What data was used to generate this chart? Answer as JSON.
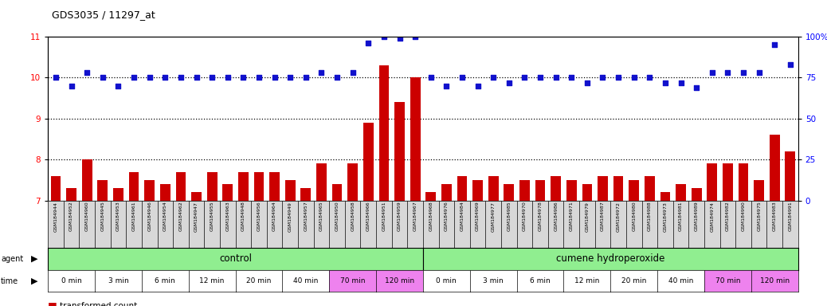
{
  "title": "GDS3035 / 11297_at",
  "samples": [
    "GSM184944",
    "GSM184952",
    "GSM184960",
    "GSM184945",
    "GSM184953",
    "GSM184961",
    "GSM184946",
    "GSM184954",
    "GSM184962",
    "GSM184947",
    "GSM184955",
    "GSM184963",
    "GSM184948",
    "GSM184956",
    "GSM184964",
    "GSM184949",
    "GSM184957",
    "GSM184965",
    "GSM184950",
    "GSM184958",
    "GSM184966",
    "GSM184951",
    "GSM184959",
    "GSM184967",
    "GSM184968",
    "GSM184976",
    "GSM184984",
    "GSM184969",
    "GSM184977",
    "GSM184985",
    "GSM184970",
    "GSM184978",
    "GSM184986",
    "GSM184971",
    "GSM184979",
    "GSM184987",
    "GSM184972",
    "GSM184980",
    "GSM184988",
    "GSM184973",
    "GSM184981",
    "GSM184989",
    "GSM184974",
    "GSM184982",
    "GSM184990",
    "GSM184975",
    "GSM184983",
    "GSM184991"
  ],
  "bar_values": [
    7.6,
    7.3,
    8.0,
    7.5,
    7.3,
    7.7,
    7.5,
    7.4,
    7.7,
    7.2,
    7.7,
    7.4,
    7.7,
    7.7,
    7.7,
    7.5,
    7.3,
    7.9,
    7.4,
    7.9,
    8.9,
    10.3,
    9.4,
    10.0,
    7.2,
    7.4,
    7.6,
    7.5,
    7.6,
    7.4,
    7.5,
    7.5,
    7.6,
    7.5,
    7.4,
    7.6,
    7.6,
    7.5,
    7.6,
    7.2,
    7.4,
    7.3,
    7.9,
    7.9,
    7.9,
    7.5,
    8.6,
    8.2
  ],
  "percentile_values": [
    75,
    70,
    78,
    75,
    70,
    75,
    75,
    75,
    75,
    75,
    75,
    75,
    75,
    75,
    75,
    75,
    75,
    78,
    75,
    78,
    96,
    100,
    99,
    100,
    75,
    70,
    75,
    70,
    75,
    72,
    75,
    75,
    75,
    75,
    72,
    75,
    75,
    75,
    75,
    72,
    72,
    69,
    78,
    78,
    78,
    78,
    95,
    83
  ],
  "time_labels": [
    "0 min",
    "3 min",
    "6 min",
    "12 min",
    "20 min",
    "40 min",
    "70 min",
    "120 min"
  ],
  "time_bg_colors": [
    "#ffffff",
    "#ffffff",
    "#ffffff",
    "#ffffff",
    "#ffffff",
    "#ffffff",
    "#ee82ee",
    "#ee82ee"
  ],
  "agent_label_ctrl": "control",
  "agent_label_cum": "cumene hydroperoxide",
  "agent_color": "#90EE90",
  "bar_color": "#cc0000",
  "dot_color": "#1111cc",
  "ylim_left": [
    7,
    11
  ],
  "ylim_right": [
    0,
    100
  ],
  "yticks_left": [
    7,
    8,
    9,
    10,
    11
  ],
  "yticks_right": [
    0,
    25,
    50,
    75,
    100
  ],
  "background_color": "#ffffff",
  "xlabel_bg": "#d8d8d8"
}
